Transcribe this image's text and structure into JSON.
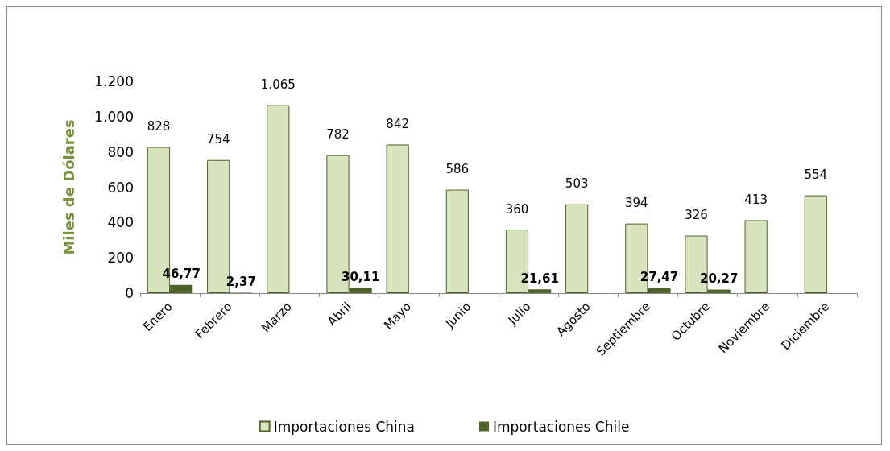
{
  "chart_data": {
    "type": "bar",
    "ylabel": "Miles de Dólares",
    "categories": [
      "Enero",
      "Febrero",
      "Marzo",
      "Abril",
      "Mayo",
      "Junio",
      "Julio",
      "Agosto",
      "Septiembre",
      "Octubre",
      "Noviembre",
      "Diciembre"
    ],
    "series": [
      {
        "name": "Importaciones China",
        "color": "#d7e4bd",
        "values": [
          828,
          754,
          1065,
          782,
          842,
          586,
          360,
          503,
          394,
          326,
          413,
          554
        ],
        "value_labels": [
          "828",
          "754",
          "1.065",
          "782",
          "842",
          "586",
          "360",
          "503",
          "394",
          "326",
          "413",
          "554"
        ]
      },
      {
        "name": "Importaciones Chile",
        "color": "#4f6228",
        "values": [
          46.77,
          2.37,
          null,
          30.11,
          null,
          null,
          21.61,
          null,
          27.47,
          20.27,
          null,
          null
        ],
        "value_labels": [
          "46,77",
          "2,37",
          null,
          "30,11",
          null,
          null,
          "21,61",
          null,
          "27,47",
          "20,27",
          null,
          null
        ]
      }
    ],
    "ylim": [
      0,
      1200
    ],
    "yticks": [
      0,
      200,
      400,
      600,
      800,
      {
        "value": 1000,
        "label": "1.000"
      },
      {
        "value": 1200,
        "label": "1.200"
      }
    ],
    "grid": false,
    "legend": "bottom"
  }
}
